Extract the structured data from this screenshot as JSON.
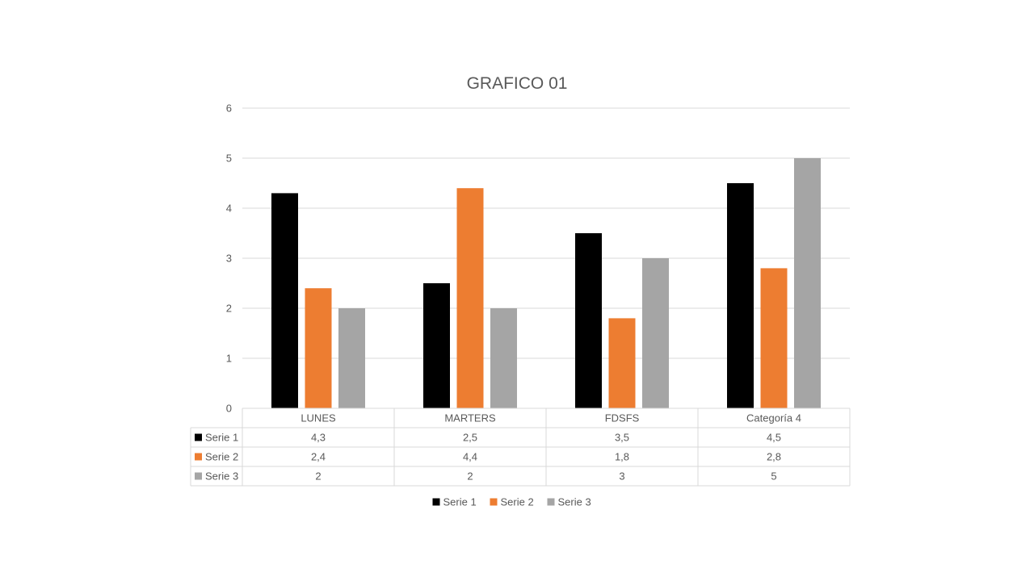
{
  "chart_data": {
    "type": "bar",
    "title": "GRAFICO 01",
    "categories": [
      "LUNES",
      "MARTERS",
      "FDSFS",
      "Categoría 4"
    ],
    "series": [
      {
        "name": "Serie 1",
        "values": [
          4.3,
          2.5,
          3.5,
          4.5
        ],
        "color": "#000000",
        "labels": [
          "4,3",
          "2,5",
          "3,5",
          "4,5"
        ]
      },
      {
        "name": "Serie 2",
        "values": [
          2.4,
          4.4,
          1.8,
          2.8
        ],
        "color": "#ed7d31",
        "labels": [
          "2,4",
          "4,4",
          "1,8",
          "2,8"
        ]
      },
      {
        "name": "Serie 3",
        "values": [
          2,
          2,
          3,
          5
        ],
        "color": "#a5a5a5",
        "labels": [
          "2",
          "2",
          "3",
          "5"
        ]
      }
    ],
    "ylim": [
      0,
      6
    ],
    "yticks": [
      0,
      1,
      2,
      3,
      4,
      5,
      6
    ],
    "grid": true,
    "data_table": true,
    "legend": "bottom"
  }
}
